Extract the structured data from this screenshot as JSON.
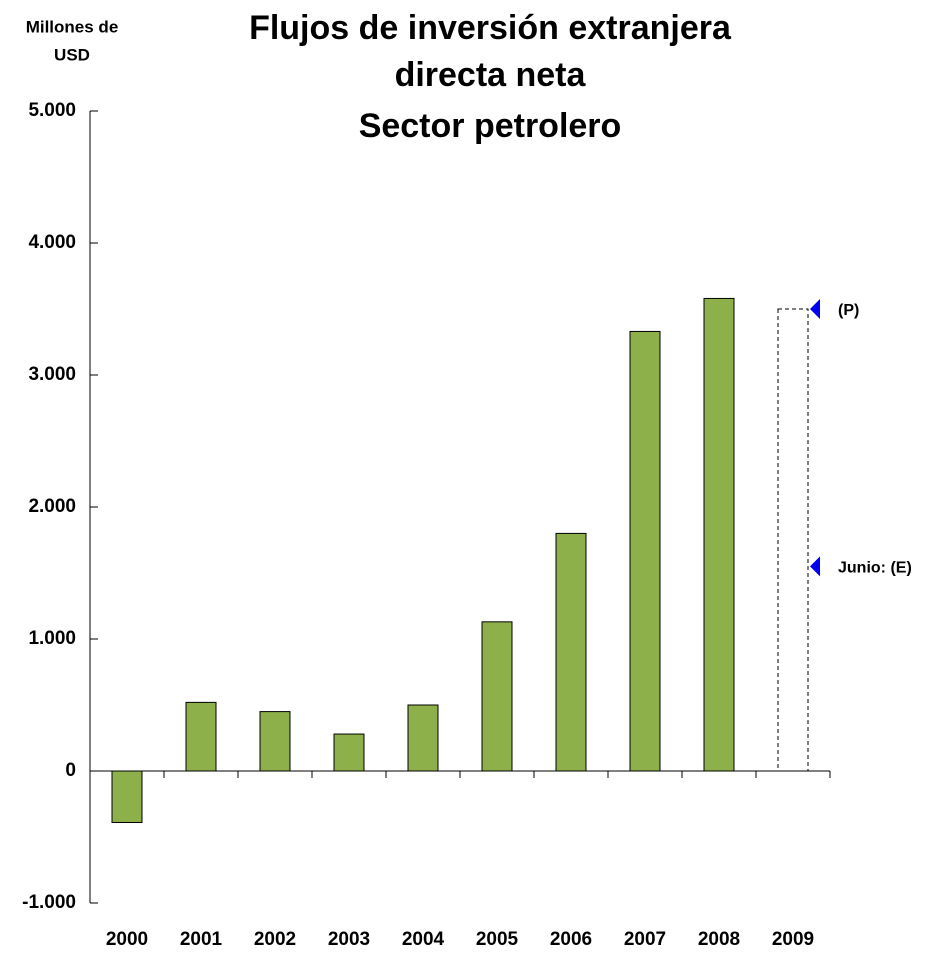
{
  "chart_data": {
    "type": "bar",
    "title": [
      "Flujos de inversión extranjera",
      "directa neta",
      "Sector petrolero"
    ],
    "y_label": [
      "Millones de",
      "USD"
    ],
    "categories": [
      "2000",
      "2001",
      "2002",
      "2003",
      "2004",
      "2005",
      "2006",
      "2007",
      "2008",
      "2009"
    ],
    "values": [
      -390,
      520,
      450,
      280,
      500,
      1130,
      1800,
      3330,
      3580,
      3500
    ],
    "dashed": [
      false,
      false,
      false,
      false,
      false,
      false,
      false,
      false,
      false,
      true
    ],
    "color": "#8db04a",
    "marker_color": "#0000ee",
    "annotations": [
      {
        "label": "(P)",
        "value": 3500
      },
      {
        "label": "Junio: (E)",
        "value": 1550
      }
    ],
    "ylim": [
      -1000,
      5000
    ],
    "yticks": [
      {
        "value": -1000,
        "label": "-1.000"
      },
      0,
      {
        "value": 1000,
        "label": "1.000"
      },
      {
        "value": 2000,
        "label": "2.000"
      },
      {
        "value": 3000,
        "label": "3.000"
      },
      {
        "value": 4000,
        "label": "4.000"
      },
      {
        "value": 5000,
        "label": "5.000"
      }
    ]
  }
}
